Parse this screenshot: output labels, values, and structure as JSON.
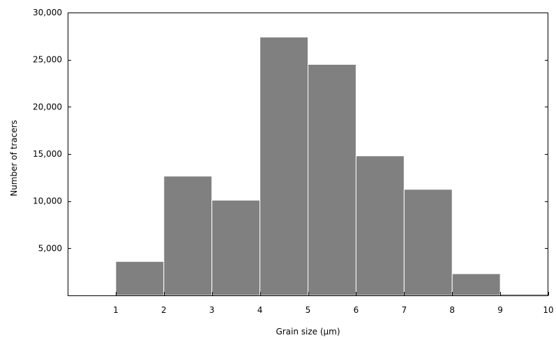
{
  "chart_data": {
    "type": "bar",
    "title": "",
    "xlabel": "Grain size (µm)",
    "ylabel": "Number of tracers",
    "xlim": [
      0,
      10
    ],
    "ylim": [
      0,
      30000
    ],
    "x_ticks": [
      1,
      2,
      3,
      4,
      5,
      6,
      7,
      8,
      9,
      10
    ],
    "x_tick_labels": [
      "1",
      "2",
      "3",
      "4",
      "5",
      "6",
      "7",
      "8",
      "9",
      "10"
    ],
    "y_ticks": [
      5000,
      10000,
      15000,
      20000,
      25000,
      30000
    ],
    "y_tick_labels": [
      "5,000",
      "10,000",
      "15,000",
      "20,000",
      "25,000",
      "30,000"
    ],
    "bins": [
      {
        "x0": 1,
        "x1": 2,
        "value": 3600
      },
      {
        "x0": 2,
        "x1": 3,
        "value": 12650
      },
      {
        "x0": 3,
        "x1": 4,
        "value": 10100
      },
      {
        "x0": 4,
        "x1": 5,
        "value": 27400
      },
      {
        "x0": 5,
        "x1": 6,
        "value": 24500
      },
      {
        "x0": 6,
        "x1": 7,
        "value": 14800
      },
      {
        "x0": 7,
        "x1": 8,
        "value": 11250
      },
      {
        "x0": 8,
        "x1": 9,
        "value": 2300
      },
      {
        "x0": 9,
        "x1": 10,
        "value": 150
      }
    ],
    "bar_color": "#808080",
    "bar_edge_color": "#ffffff",
    "grid": false,
    "legend": "none"
  }
}
